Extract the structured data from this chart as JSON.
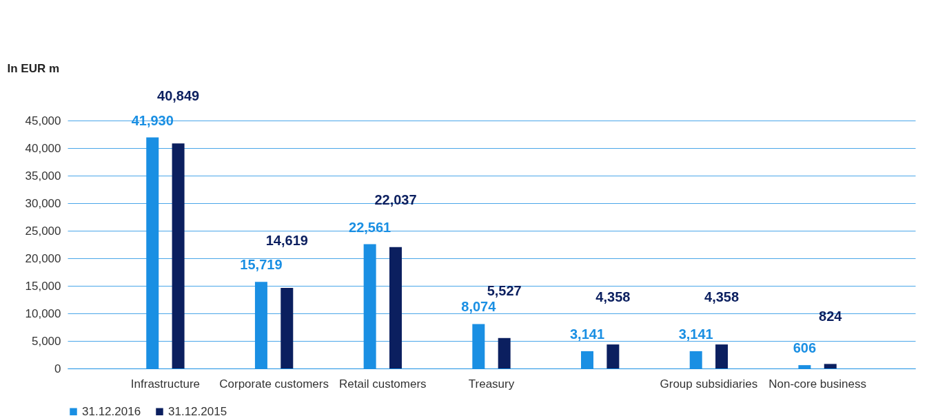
{
  "chart_data": {
    "type": "bar",
    "ylabel": "In EUR m",
    "categories": [
      "Infrastructure",
      "Corporate customers",
      "Retail customers",
      "Treasury",
      null,
      "Group subsidiaries",
      "Non-core business"
    ],
    "series": [
      {
        "name": "31.12.2016",
        "color": "#1a8fe3",
        "values": [
          41930,
          15719,
          22561,
          8074,
          3141,
          3141,
          606
        ],
        "value_labels": [
          "41,930",
          "15,719",
          "22,561",
          "8,074",
          "3,141",
          "3,141",
          "606"
        ]
      },
      {
        "name": "31.12.2015",
        "color": "#0b1f5f",
        "values": [
          40849,
          14619,
          22037,
          5527,
          4358,
          4358,
          824
        ],
        "value_labels": [
          "40,849",
          "14,619",
          "22,037",
          "5,527",
          "4,358",
          "4,358",
          "824"
        ]
      }
    ],
    "ylim": [
      0,
      45000
    ],
    "yticks": [
      0,
      {
        "value": 5000,
        "label": "5,000"
      },
      {
        "value": 10000,
        "label": "10,000"
      },
      {
        "value": 15000,
        "label": "15,000"
      },
      {
        "value": 20000,
        "label": "20,000"
      },
      {
        "value": 25000,
        "label": "25,000"
      },
      {
        "value": 30000,
        "label": "30,000"
      },
      {
        "value": 35000,
        "label": "35,000"
      },
      {
        "value": 40000,
        "label": "40,000"
      },
      {
        "value": 45000,
        "label": "45,000"
      }
    ],
    "grid": "y",
    "legend": "bottom left"
  }
}
